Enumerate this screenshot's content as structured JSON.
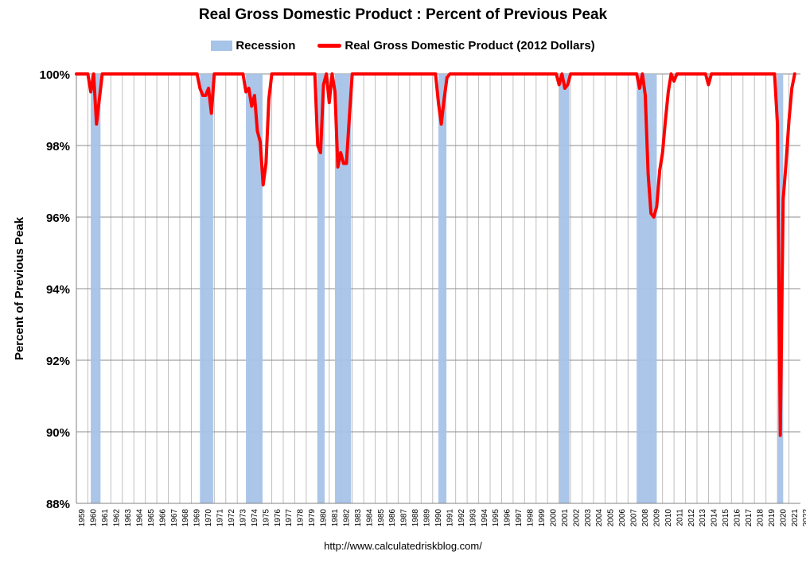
{
  "chart_data": {
    "type": "line",
    "title": "Real Gross Domestic Product : Percent of Previous Peak",
    "xlabel": "",
    "ylabel": "Percent of Previous Peak",
    "source": "http://www.calculatedriskblog.com/",
    "xlim": [
      1959,
      2022
    ],
    "ylim": [
      88,
      100
    ],
    "yticks": [
      88,
      90,
      92,
      94,
      96,
      98,
      100
    ],
    "ytick_labels": [
      "88%",
      "90%",
      "92%",
      "94%",
      "96%",
      "98%",
      "100%"
    ],
    "xtick_labels": [
      "1959",
      "1960",
      "1961",
      "1962",
      "1963",
      "1964",
      "1965",
      "1966",
      "1967",
      "1968",
      "1969",
      "1970",
      "1971",
      "1972",
      "1973",
      "1974",
      "1975",
      "1976",
      "1977",
      "1978",
      "1979",
      "1980",
      "1981",
      "1982",
      "1983",
      "1984",
      "1985",
      "1986",
      "1987",
      "1988",
      "1989",
      "1990",
      "1991",
      "1992",
      "1993",
      "1994",
      "1995",
      "1996",
      "1997",
      "1998",
      "1999",
      "2000",
      "2001",
      "2002",
      "2003",
      "2004",
      "2005",
      "2006",
      "2007",
      "2008",
      "2009",
      "2010",
      "2011",
      "2012",
      "2013",
      "2014",
      "2015",
      "2016",
      "2017",
      "2018",
      "2019",
      "2020",
      "2021",
      "2022"
    ],
    "legend": [
      {
        "name": "Recession",
        "kind": "area",
        "color": "#a6c3e8"
      },
      {
        "name": "Real Gross Domestic Product (2012 Dollars)",
        "kind": "line",
        "color": "#ff0000"
      }
    ],
    "recessions": [
      [
        1960.25,
        1961.1
      ],
      [
        1969.75,
        1970.9
      ],
      [
        1973.75,
        1975.2
      ],
      [
        1980.0,
        1980.6
      ],
      [
        1981.5,
        1982.9
      ],
      [
        1990.5,
        1991.2
      ],
      [
        2001.0,
        2001.9
      ],
      [
        2007.75,
        2009.5
      ],
      [
        2020.0,
        2020.5
      ]
    ],
    "series": [
      {
        "name": "Real Gross Domestic Product (2012 Dollars)",
        "color": "#ff0000",
        "points": [
          [
            1959.0,
            100
          ],
          [
            1960.0,
            100
          ],
          [
            1960.25,
            99.5
          ],
          [
            1960.5,
            100
          ],
          [
            1960.75,
            98.6
          ],
          [
            1961.0,
            99.3
          ],
          [
            1961.25,
            100
          ],
          [
            1969.5,
            100
          ],
          [
            1969.75,
            99.6
          ],
          [
            1970.0,
            99.4
          ],
          [
            1970.25,
            99.4
          ],
          [
            1970.5,
            99.6
          ],
          [
            1970.75,
            98.9
          ],
          [
            1971.0,
            100
          ],
          [
            1973.5,
            100
          ],
          [
            1973.75,
            99.5
          ],
          [
            1974.0,
            99.6
          ],
          [
            1974.25,
            99.1
          ],
          [
            1974.5,
            99.4
          ],
          [
            1974.75,
            98.4
          ],
          [
            1975.0,
            98.1
          ],
          [
            1975.25,
            96.9
          ],
          [
            1975.5,
            97.5
          ],
          [
            1975.75,
            99.3
          ],
          [
            1976.0,
            100
          ],
          [
            1979.75,
            100
          ],
          [
            1980.0,
            98.0
          ],
          [
            1980.25,
            97.8
          ],
          [
            1980.5,
            99.7
          ],
          [
            1980.75,
            100
          ],
          [
            1981.0,
            99.2
          ],
          [
            1981.25,
            100
          ],
          [
            1981.5,
            99.5
          ],
          [
            1981.75,
            97.4
          ],
          [
            1982.0,
            97.8
          ],
          [
            1982.25,
            97.5
          ],
          [
            1982.5,
            97.5
          ],
          [
            1982.75,
            98.8
          ],
          [
            1983.0,
            100
          ],
          [
            1990.25,
            100
          ],
          [
            1990.5,
            99.2
          ],
          [
            1990.75,
            98.6
          ],
          [
            1991.0,
            99.3
          ],
          [
            1991.25,
            99.9
          ],
          [
            1991.5,
            100
          ],
          [
            2000.75,
            100
          ],
          [
            2001.0,
            99.7
          ],
          [
            2001.25,
            100
          ],
          [
            2001.5,
            99.6
          ],
          [
            2001.75,
            99.7
          ],
          [
            2002.0,
            100
          ],
          [
            2007.75,
            100
          ],
          [
            2008.0,
            99.6
          ],
          [
            2008.25,
            100
          ],
          [
            2008.5,
            99.4
          ],
          [
            2008.75,
            97.2
          ],
          [
            2009.0,
            96.1
          ],
          [
            2009.25,
            96.0
          ],
          [
            2009.5,
            96.3
          ],
          [
            2009.75,
            97.3
          ],
          [
            2010.0,
            97.8
          ],
          [
            2010.25,
            98.7
          ],
          [
            2010.5,
            99.5
          ],
          [
            2010.75,
            100
          ],
          [
            2011.0,
            99.8
          ],
          [
            2011.25,
            100
          ],
          [
            2013.75,
            100
          ],
          [
            2014.0,
            99.7
          ],
          [
            2014.25,
            100
          ],
          [
            2019.75,
            100
          ],
          [
            2020.0,
            98.6
          ],
          [
            2020.25,
            89.9
          ],
          [
            2020.5,
            96.5
          ],
          [
            2020.75,
            97.5
          ],
          [
            2021.0,
            98.7
          ],
          [
            2021.25,
            99.6
          ],
          [
            2021.5,
            100
          ]
        ]
      }
    ]
  }
}
